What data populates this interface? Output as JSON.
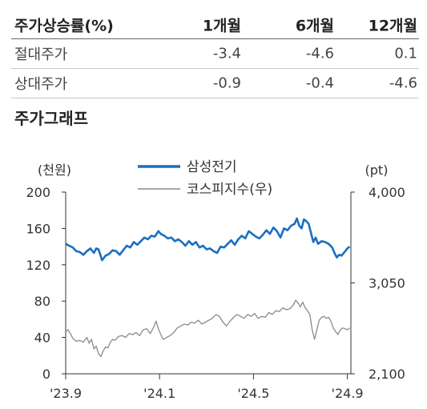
{
  "returns_table": {
    "columns": [
      "주가상승률(%)",
      "1개월",
      "6개월",
      "12개월"
    ],
    "rows": [
      {
        "label": "절대주가",
        "values": [
          "-3.4",
          "-4.6",
          "0.1"
        ]
      },
      {
        "label": "상대주가",
        "values": [
          "-0.9",
          "-0.4",
          "-4.6"
        ]
      }
    ]
  },
  "section_title": "주가그래프",
  "chart_data": {
    "type": "line",
    "left_axis": {
      "unit": "(천원)",
      "ticks": [
        0,
        40,
        80,
        120,
        160,
        200
      ],
      "ylim": [
        0,
        200
      ]
    },
    "right_axis": {
      "unit": "(pt)",
      "ticks": [
        "2,100",
        "3,050",
        "4,000"
      ],
      "ylim": [
        2100,
        4000
      ]
    },
    "x_ticks": [
      {
        "label": "'23.9",
        "x": 0
      },
      {
        "label": "'24.1",
        "x": 4
      },
      {
        "label": "'24.5",
        "x": 8
      },
      {
        "label": "'24.9",
        "x": 12
      }
    ],
    "xlim": [
      0,
      12.15
    ],
    "grid": false,
    "legend_position": "top",
    "series": [
      {
        "name": "삼성전기",
        "axis": "left",
        "color": "#1a6fc2",
        "points": [
          [
            0.0,
            143
          ],
          [
            0.15,
            141
          ],
          [
            0.3,
            139
          ],
          [
            0.45,
            135
          ],
          [
            0.6,
            134
          ],
          [
            0.75,
            131
          ],
          [
            0.9,
            135
          ],
          [
            1.05,
            138
          ],
          [
            1.2,
            133
          ],
          [
            1.3,
            138
          ],
          [
            1.4,
            137
          ],
          [
            1.55,
            125
          ],
          [
            1.7,
            130
          ],
          [
            1.85,
            132
          ],
          [
            2.0,
            136
          ],
          [
            2.15,
            135
          ],
          [
            2.3,
            131
          ],
          [
            2.45,
            136
          ],
          [
            2.6,
            141
          ],
          [
            2.75,
            139
          ],
          [
            2.9,
            145
          ],
          [
            3.05,
            142
          ],
          [
            3.2,
            146
          ],
          [
            3.35,
            150
          ],
          [
            3.5,
            148
          ],
          [
            3.65,
            152
          ],
          [
            3.8,
            151
          ],
          [
            3.95,
            157
          ],
          [
            4.05,
            154
          ],
          [
            4.2,
            152
          ],
          [
            4.35,
            149
          ],
          [
            4.5,
            150
          ],
          [
            4.65,
            146
          ],
          [
            4.8,
            148
          ],
          [
            4.95,
            145
          ],
          [
            5.1,
            141
          ],
          [
            5.25,
            146
          ],
          [
            5.4,
            142
          ],
          [
            5.55,
            145
          ],
          [
            5.7,
            139
          ],
          [
            5.85,
            141
          ],
          [
            6.0,
            137
          ],
          [
            6.15,
            138
          ],
          [
            6.3,
            135
          ],
          [
            6.45,
            133
          ],
          [
            6.6,
            140
          ],
          [
            6.75,
            139
          ],
          [
            6.9,
            143
          ],
          [
            7.05,
            147
          ],
          [
            7.2,
            142
          ],
          [
            7.35,
            148
          ],
          [
            7.5,
            152
          ],
          [
            7.65,
            149
          ],
          [
            7.8,
            157
          ],
          [
            7.95,
            154
          ],
          [
            8.1,
            151
          ],
          [
            8.25,
            149
          ],
          [
            8.4,
            153
          ],
          [
            8.55,
            158
          ],
          [
            8.7,
            154
          ],
          [
            8.85,
            161
          ],
          [
            9.0,
            157
          ],
          [
            9.15,
            150
          ],
          [
            9.3,
            160
          ],
          [
            9.45,
            158
          ],
          [
            9.6,
            163
          ],
          [
            9.75,
            165
          ],
          [
            9.85,
            171
          ],
          [
            9.95,
            163
          ],
          [
            10.05,
            160
          ],
          [
            10.15,
            170
          ],
          [
            10.25,
            168
          ],
          [
            10.35,
            165
          ],
          [
            10.45,
            155
          ],
          [
            10.55,
            145
          ],
          [
            10.65,
            150
          ],
          [
            10.75,
            143
          ],
          [
            10.9,
            146
          ],
          [
            11.05,
            145
          ],
          [
            11.2,
            143
          ],
          [
            11.35,
            139
          ],
          [
            11.45,
            133
          ],
          [
            11.55,
            128
          ],
          [
            11.65,
            131
          ],
          [
            11.75,
            130
          ],
          [
            11.85,
            133
          ],
          [
            12.0,
            138
          ],
          [
            12.1,
            140
          ]
        ]
      },
      {
        "name": "코스피지수(우)",
        "axis": "right",
        "color": "#8a8a8a",
        "points": [
          [
            0.0,
            2540
          ],
          [
            0.1,
            2560
          ],
          [
            0.2,
            2520
          ],
          [
            0.3,
            2470
          ],
          [
            0.45,
            2440
          ],
          [
            0.6,
            2450
          ],
          [
            0.75,
            2430
          ],
          [
            0.9,
            2480
          ],
          [
            1.0,
            2420
          ],
          [
            1.1,
            2460
          ],
          [
            1.2,
            2360
          ],
          [
            1.3,
            2390
          ],
          [
            1.4,
            2310
          ],
          [
            1.5,
            2280
          ],
          [
            1.6,
            2340
          ],
          [
            1.7,
            2380
          ],
          [
            1.8,
            2370
          ],
          [
            1.9,
            2430
          ],
          [
            2.0,
            2460
          ],
          [
            2.1,
            2450
          ],
          [
            2.25,
            2490
          ],
          [
            2.4,
            2500
          ],
          [
            2.55,
            2480
          ],
          [
            2.7,
            2520
          ],
          [
            2.85,
            2510
          ],
          [
            3.0,
            2530
          ],
          [
            3.15,
            2500
          ],
          [
            3.3,
            2560
          ],
          [
            3.45,
            2570
          ],
          [
            3.6,
            2520
          ],
          [
            3.75,
            2590
          ],
          [
            3.85,
            2650
          ],
          [
            3.95,
            2570
          ],
          [
            4.05,
            2510
          ],
          [
            4.15,
            2460
          ],
          [
            4.3,
            2480
          ],
          [
            4.45,
            2500
          ],
          [
            4.6,
            2530
          ],
          [
            4.75,
            2580
          ],
          [
            4.9,
            2600
          ],
          [
            5.05,
            2620
          ],
          [
            5.2,
            2610
          ],
          [
            5.35,
            2640
          ],
          [
            5.5,
            2630
          ],
          [
            5.65,
            2660
          ],
          [
            5.8,
            2620
          ],
          [
            5.95,
            2640
          ],
          [
            6.1,
            2660
          ],
          [
            6.25,
            2680
          ],
          [
            6.4,
            2720
          ],
          [
            6.55,
            2700
          ],
          [
            6.7,
            2640
          ],
          [
            6.85,
            2600
          ],
          [
            7.0,
            2650
          ],
          [
            7.15,
            2690
          ],
          [
            7.3,
            2720
          ],
          [
            7.45,
            2700
          ],
          [
            7.6,
            2680
          ],
          [
            7.75,
            2720
          ],
          [
            7.9,
            2700
          ],
          [
            8.05,
            2730
          ],
          [
            8.2,
            2680
          ],
          [
            8.35,
            2700
          ],
          [
            8.5,
            2690
          ],
          [
            8.65,
            2740
          ],
          [
            8.8,
            2720
          ],
          [
            8.95,
            2760
          ],
          [
            9.1,
            2750
          ],
          [
            9.25,
            2790
          ],
          [
            9.4,
            2770
          ],
          [
            9.55,
            2780
          ],
          [
            9.7,
            2820
          ],
          [
            9.8,
            2870
          ],
          [
            9.9,
            2840
          ],
          [
            10.0,
            2800
          ],
          [
            10.1,
            2850
          ],
          [
            10.2,
            2790
          ],
          [
            10.3,
            2760
          ],
          [
            10.4,
            2720
          ],
          [
            10.5,
            2560
          ],
          [
            10.6,
            2460
          ],
          [
            10.7,
            2560
          ],
          [
            10.8,
            2660
          ],
          [
            10.9,
            2690
          ],
          [
            11.0,
            2700
          ],
          [
            11.1,
            2680
          ],
          [
            11.2,
            2690
          ],
          [
            11.3,
            2650
          ],
          [
            11.4,
            2580
          ],
          [
            11.5,
            2540
          ],
          [
            11.6,
            2510
          ],
          [
            11.7,
            2560
          ],
          [
            11.8,
            2580
          ],
          [
            11.9,
            2570
          ],
          [
            12.0,
            2560
          ],
          [
            12.1,
            2580
          ]
        ]
      }
    ]
  }
}
